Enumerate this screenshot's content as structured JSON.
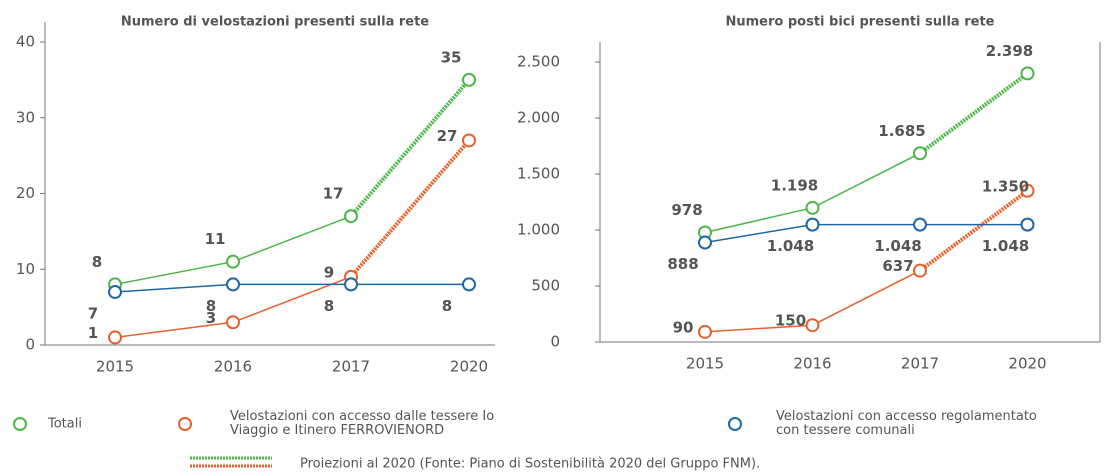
{
  "chart_data": [
    {
      "type": "line",
      "title": "Numero di velostazioni presenti sulla rete",
      "categories": [
        "2015",
        "2016",
        "2017",
        "2020"
      ],
      "ylim": [
        0,
        40
      ],
      "yticks": [
        0,
        10,
        20,
        30,
        40
      ],
      "series": [
        {
          "name": "Totali",
          "color": "#4cb748",
          "values": [
            8,
            11,
            17,
            35
          ],
          "projection": true
        },
        {
          "name": "Velostazioni con accesso dalle tessere Io Viaggio e Itinero FERROVIENORD",
          "color": "#e8612c",
          "values": [
            1,
            3,
            9,
            27
          ],
          "projection": true
        },
        {
          "name": "Velostazioni con accesso regolamentato con tessere comunali",
          "color": "#1f67a6",
          "values": [
            7,
            8,
            8,
            8
          ],
          "projection": false
        }
      ]
    },
    {
      "type": "line",
      "title": "Numero posti bici presenti sulla rete",
      "categories": [
        "2015",
        "2016",
        "2017",
        "2020"
      ],
      "ylim": [
        0,
        2500
      ],
      "yticks": [
        0,
        500,
        {
          "value": 1000,
          "label": "1.000"
        },
        {
          "value": 1500,
          "label": "1.500"
        },
        {
          "value": 2000,
          "label": "2.000"
        },
        {
          "value": 2500,
          "label": "2.500"
        }
      ],
      "series": [
        {
          "name": "Totali",
          "color": "#4cb748",
          "values": [
            978,
            1198,
            1685,
            2398
          ],
          "value_labels": [
            "978",
            "1.198",
            "1.685",
            "2.398"
          ],
          "projection": true
        },
        {
          "name": "Velostazioni con accesso dalle tessere Io Viaggio e Itinero FERROVIENORD",
          "color": "#e8612c",
          "values": [
            90,
            150,
            637,
            1350
          ],
          "value_labels": [
            "90",
            "150",
            "637",
            "1.350"
          ],
          "projection": true
        },
        {
          "name": "Velostazioni con accesso regolamentato con tessere comunali",
          "color": "#1f67a6",
          "values": [
            888,
            1048,
            1048,
            1048
          ],
          "value_labels": [
            "888",
            "1.048",
            "1.048",
            "1.048"
          ],
          "projection": false
        }
      ]
    }
  ],
  "note": "Proiezioni al 2020 (Fonte: Piano di Sostenibilità 2020 del Gruppo FNM)."
}
